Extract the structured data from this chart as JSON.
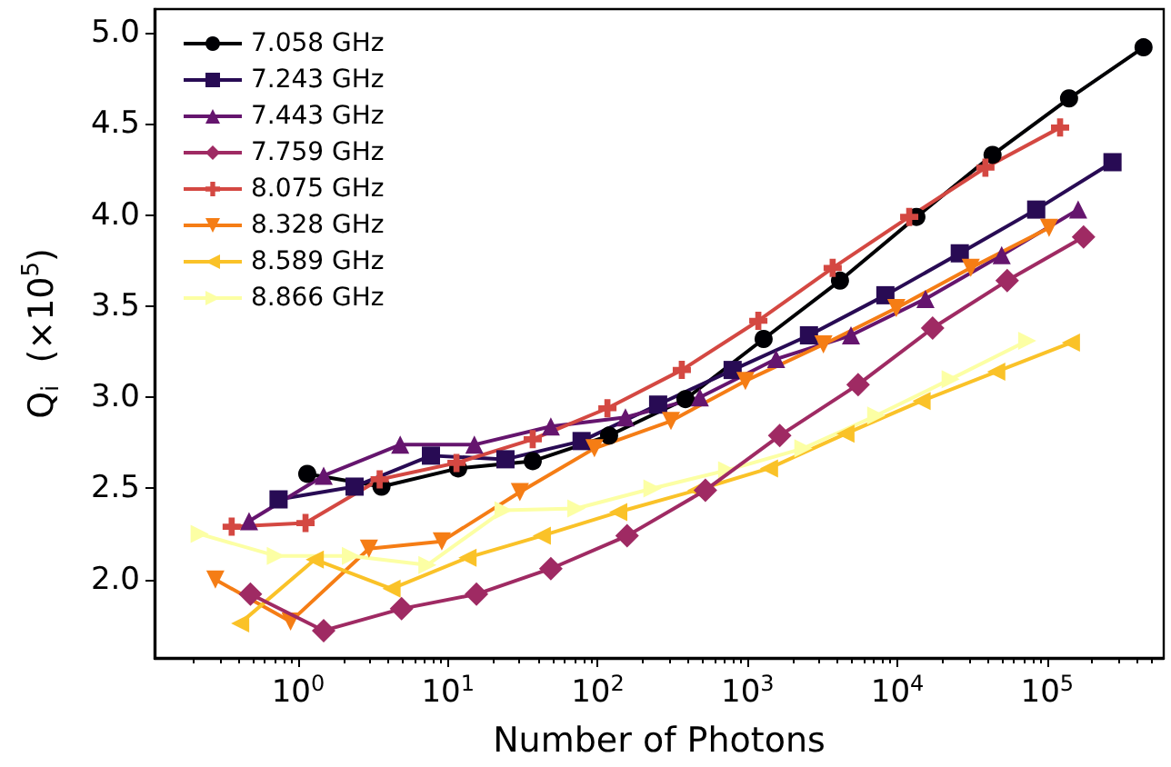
{
  "chart_data": {
    "type": "line",
    "xlabel": "Number of Photons",
    "ylabel": "Q$_{i}$  (×10$^{5}$)",
    "log": "x",
    "grid": false,
    "legend": "top left",
    "xlim": [
      0.11,
      600000
    ],
    "xticks": [
      {
        "value": 1,
        "label": "10$^{0}$"
      },
      {
        "value": 10,
        "label": "10$^{1}$"
      },
      {
        "value": 100,
        "label": "10$^{2}$"
      },
      {
        "value": 1000,
        "label": "10$^{3}$"
      },
      {
        "value": 10000,
        "label": "10$^{4}$"
      },
      {
        "value": 100000,
        "label": "10$^{5}$"
      }
    ],
    "ylim": [
      1.57,
      5.13
    ],
    "yticks": [
      {
        "value": 2,
        "label": "2.0"
      },
      {
        "value": 2.5,
        "label": "2.5"
      },
      {
        "value": 3,
        "label": "3.0"
      },
      {
        "value": 3.5,
        "label": "3.5"
      },
      {
        "value": 4,
        "label": "4.0"
      },
      {
        "value": 4.5,
        "label": "4.5"
      },
      {
        "value": 5,
        "label": "5.0"
      }
    ],
    "series": [
      {
        "name": "7.058 GHz",
        "color": "#000004",
        "marker": "circle",
        "x": [
          1.15,
          3.6,
          11.7,
          36.8,
          119,
          385,
          1280,
          4140,
          13400,
          43200,
          140000,
          440000
        ],
        "values": [
          2.58,
          2.51,
          2.61,
          2.65,
          2.79,
          2.99,
          3.32,
          3.64,
          3.99,
          4.33,
          4.64,
          4.92
        ]
      },
      {
        "name": "7.243 GHz",
        "color": "#280b54",
        "marker": "square",
        "x": [
          0.74,
          2.38,
          7.7,
          24.2,
          78,
          253,
          795,
          2570,
          8320,
          26100,
          84500,
          273000
        ],
        "values": [
          2.44,
          2.51,
          2.68,
          2.66,
          2.76,
          2.96,
          3.15,
          3.34,
          3.56,
          3.79,
          4.03,
          4.29
        ]
      },
      {
        "name": "7.443 GHz",
        "color": "#65156e",
        "marker": "triangle",
        "x": [
          0.47,
          1.48,
          4.8,
          15,
          48.6,
          153,
          480,
          1550,
          4900,
          15400,
          49700,
          161000
        ],
        "values": [
          2.32,
          2.57,
          2.74,
          2.74,
          2.84,
          2.89,
          3.0,
          3.21,
          3.34,
          3.54,
          3.78,
          4.03
        ]
      },
      {
        "name": "7.759 GHz",
        "color": "#9f2a63",
        "marker": "diamond",
        "x": [
          0.48,
          1.48,
          4.9,
          15.5,
          48.6,
          157,
          523,
          1640,
          5470,
          17200,
          54100,
          175000
        ],
        "values": [
          1.92,
          1.72,
          1.84,
          1.92,
          2.06,
          2.24,
          2.49,
          2.79,
          3.07,
          3.38,
          3.64,
          3.88
        ]
      },
      {
        "name": "8.075 GHz",
        "color": "#d44842",
        "marker": "cross",
        "x": [
          0.36,
          1.12,
          3.5,
          11.4,
          36.8,
          116,
          364,
          1180,
          3700,
          12000,
          38700,
          122000
        ],
        "values": [
          2.29,
          2.31,
          2.55,
          2.64,
          2.77,
          2.94,
          3.15,
          3.42,
          3.71,
          3.99,
          4.26,
          4.48
        ]
      },
      {
        "name": "8.328 GHz",
        "color": "#f57d15",
        "marker": "triangle-down",
        "x": [
          0.28,
          0.89,
          2.97,
          9.1,
          30.2,
          95,
          308,
          967,
          3210,
          9840,
          30900,
          103000
        ],
        "values": [
          2.0,
          1.77,
          2.17,
          2.21,
          2.48,
          2.72,
          2.87,
          3.09,
          3.29,
          3.49,
          3.71,
          3.93
        ]
      },
      {
        "name": "8.589 GHz",
        "color": "#fac228",
        "marker": "triangle-left",
        "x": [
          0.41,
          1.29,
          4.2,
          13.5,
          42.3,
          137,
          455,
          1390,
          4500,
          14500,
          45700,
          144000
        ],
        "values": [
          1.76,
          2.11,
          1.95,
          2.12,
          2.24,
          2.37,
          2.49,
          2.61,
          2.8,
          2.98,
          3.14,
          3.3
        ]
      },
      {
        "name": "8.866 GHz",
        "color": "#fcffa4",
        "marker": "triangle-right",
        "x": [
          0.22,
          0.71,
          2.25,
          7.3,
          23.5,
          72,
          232,
          731,
          2360,
          7230,
          22700,
          73600
        ],
        "values": [
          2.25,
          2.13,
          2.13,
          2.08,
          2.38,
          2.39,
          2.5,
          2.6,
          2.72,
          2.9,
          3.1,
          3.31
        ]
      }
    ]
  }
}
